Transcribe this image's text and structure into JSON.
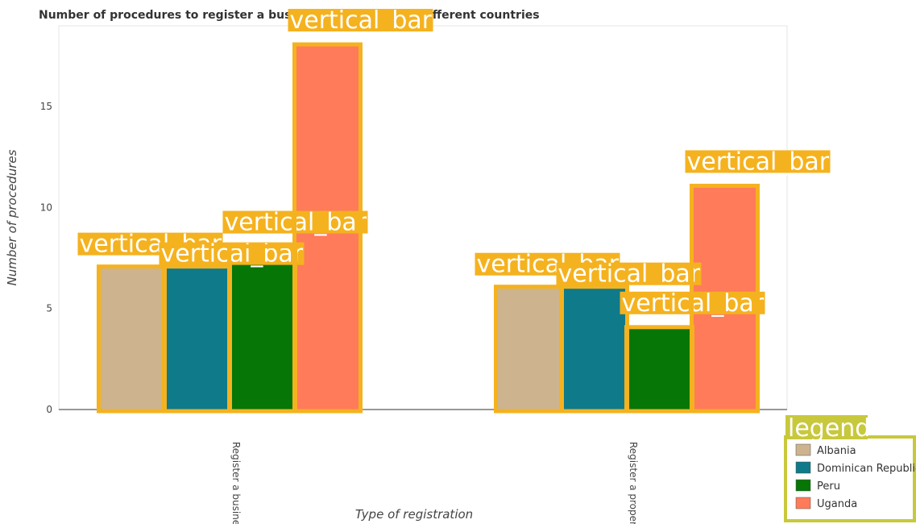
{
  "chart_data": {
    "type": "bar",
    "title": "Number of procedures to register a business or property in different countries",
    "xlabel": "Type of registration",
    "ylabel": "Number of procedures",
    "categories": [
      "Register a business",
      "Register a property"
    ],
    "series": [
      {
        "name": "Albania",
        "values": [
          7,
          6
        ],
        "color": "#cdb48e"
      },
      {
        "name": "Dominican Republic",
        "values": [
          7,
          6
        ],
        "color": "#0f7a8a"
      },
      {
        "name": "Peru",
        "values": [
          8,
          4
        ],
        "color": "#067606"
      },
      {
        "name": "Uganda",
        "values": [
          18,
          11
        ],
        "color": "#ff7b5a"
      }
    ],
    "ylim": [
      0,
      19
    ],
    "yticks": [
      0,
      5,
      10,
      15
    ],
    "grid": false,
    "legend_position": "bottom-right",
    "legend_title": "legend",
    "annotation_label": "vertical_bar",
    "annotation_color": "#f5b21f",
    "legend_annotation_color": "#c8c83c"
  }
}
